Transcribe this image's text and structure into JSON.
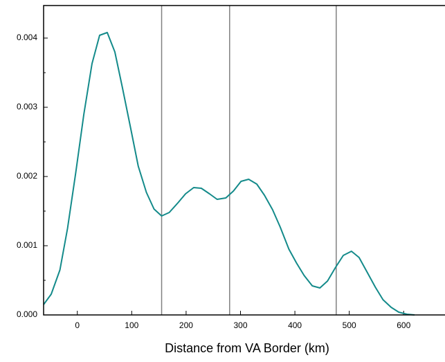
{
  "chart_data": {
    "type": "line",
    "x_label": "Distance from VA Border (km)",
    "x": [
      -62,
      -48,
      -32,
      -18,
      -3,
      12,
      27,
      41,
      55,
      69,
      83,
      98,
      112,
      127,
      141,
      155,
      169,
      185,
      199,
      214,
      228,
      243,
      257,
      273,
      287,
      301,
      315,
      330,
      344,
      359,
      373,
      389,
      403,
      417,
      432,
      446,
      460,
      475,
      489,
      504,
      518,
      532,
      548,
      562,
      577,
      591,
      606,
      620
    ],
    "series": [
      {
        "color": "#138a8a",
        "values": [
          0.00015,
          0.0003,
          0.00065,
          0.00125,
          0.00205,
          0.0029,
          0.00363,
          0.00404,
          0.00408,
          0.0038,
          0.00328,
          0.0027,
          0.00215,
          0.00177,
          0.00153,
          0.00143,
          0.00148,
          0.00162,
          0.00175,
          0.00184,
          0.00183,
          0.00175,
          0.00167,
          0.00169,
          0.00179,
          0.00193,
          0.00196,
          0.00189,
          0.00173,
          0.00152,
          0.00127,
          0.00095,
          0.00075,
          0.00057,
          0.00042,
          0.00039,
          0.00049,
          0.00069,
          0.00086,
          0.00092,
          0.00083,
          0.00063,
          0.0004,
          0.00022,
          0.00011,
          4e-05,
          1e-05,
          0
        ]
      }
    ],
    "xlim": [
      -62,
      676
    ],
    "ylim": [
      0,
      0.00447
    ],
    "xticks": [
      0,
      100,
      200,
      300,
      400,
      500,
      600
    ],
    "yticks": [
      {
        "value": 0,
        "label": "0.000"
      },
      0.001,
      0.002,
      0.003,
      0.004
    ],
    "yminorticks": [
      0.0005,
      0.0015,
      0.0025,
      0.0035
    ],
    "vlines": [
      155,
      280,
      476
    ],
    "vline_color": "#808080"
  }
}
